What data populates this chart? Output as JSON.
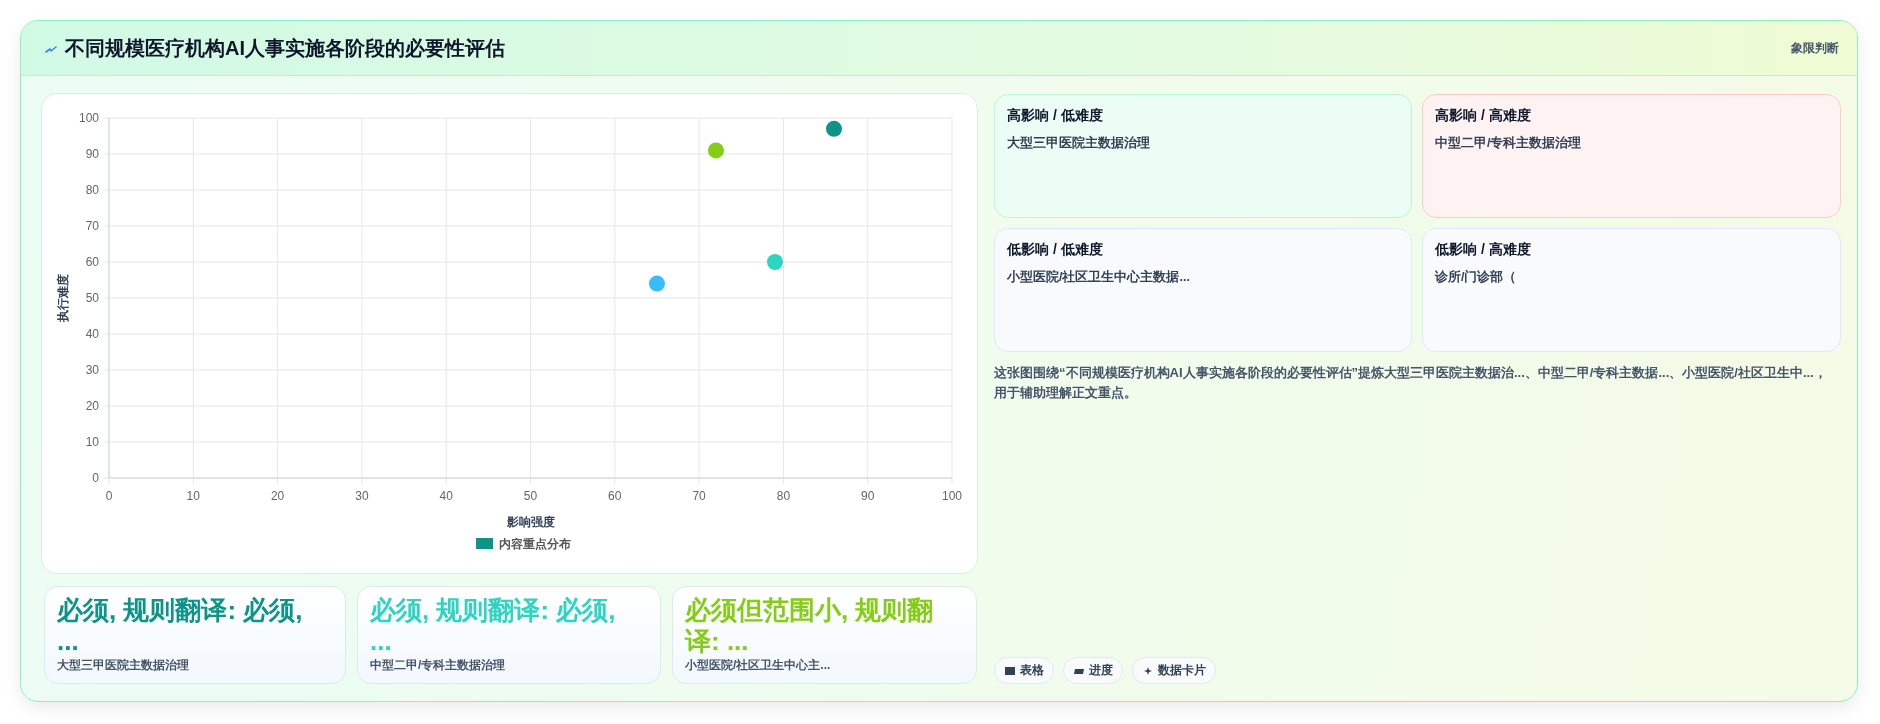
{
  "chart_data": [
    {
      "type": "other",
      "title": "不同规模医疗机构AI人事实施各阶段的必要性评估",
      "annotations": [
        "象限判断"
      ]
    },
    {
      "type": "scatter",
      "xlabel": "影响强度",
      "ylabel": "执行难度",
      "series": [
        {
          "name": "内容重点分布",
          "color": "#0d9488",
          "colors": [
            "#0d9488",
            "#2dd4bf",
            "#84cc16",
            "#38bdf8"
          ],
          "x": [
            86,
            79,
            72,
            65
          ],
          "values": [
            97,
            60,
            91,
            54
          ]
        }
      ],
      "xlim": [
        0,
        100
      ],
      "ylim": [
        0,
        100
      ],
      "xticks": [
        0,
        10,
        20,
        30,
        40,
        50,
        60,
        70,
        80,
        90,
        100
      ],
      "yticks": [
        0,
        10,
        20,
        30,
        40,
        50,
        60,
        70,
        80,
        90,
        100
      ],
      "grid": true,
      "legend": "bottom",
      "marker": "circle"
    },
    {
      "type": "other",
      "title": "高影响 / 低难度",
      "annotations": [
        "大型三甲医院主数据治理"
      ]
    },
    {
      "type": "other",
      "title": "高影响 / 高难度",
      "annotations": [
        "中型二甲/专科主数据治理"
      ]
    },
    {
      "type": "other",
      "title": "低影响 / 低难度",
      "annotations": [
        "小型医院/社区卫生中心主数据..."
      ]
    },
    {
      "type": "other",
      "title": "低影响 / 高难度",
      "annotations": [
        "诊所/门诊部（"
      ]
    },
    {
      "type": "other",
      "annotations": [
        "这张图围绕“不同规模医疗机构AI人事实施各阶段的必要性评估”提炼大型三甲医院主数据治...、中型二甲/专科主数据...、小型医院/社区卫生中...，用于辅助理解正文重点。"
      ]
    },
    {
      "type": "other",
      "title": "必须, 规则翻译: 必须, ...",
      "color": "#0d9488",
      "annotations": [
        "大型三甲医院主数据治理"
      ]
    },
    {
      "type": "other",
      "title": "必须, 规则翻译: 必须, ...",
      "color": "#2dd4bf",
      "annotations": [
        "中型二甲/专科主数据治理"
      ]
    },
    {
      "type": "other",
      "title": "必须但范围小, 规则翻译: ...",
      "color": "#84cc16",
      "annotations": [
        "小型医院/社区卫生中心主..."
      ]
    },
    {
      "type": "other",
      "annotations": [
        "表格",
        "进度",
        "数据卡片"
      ]
    }
  ]
}
